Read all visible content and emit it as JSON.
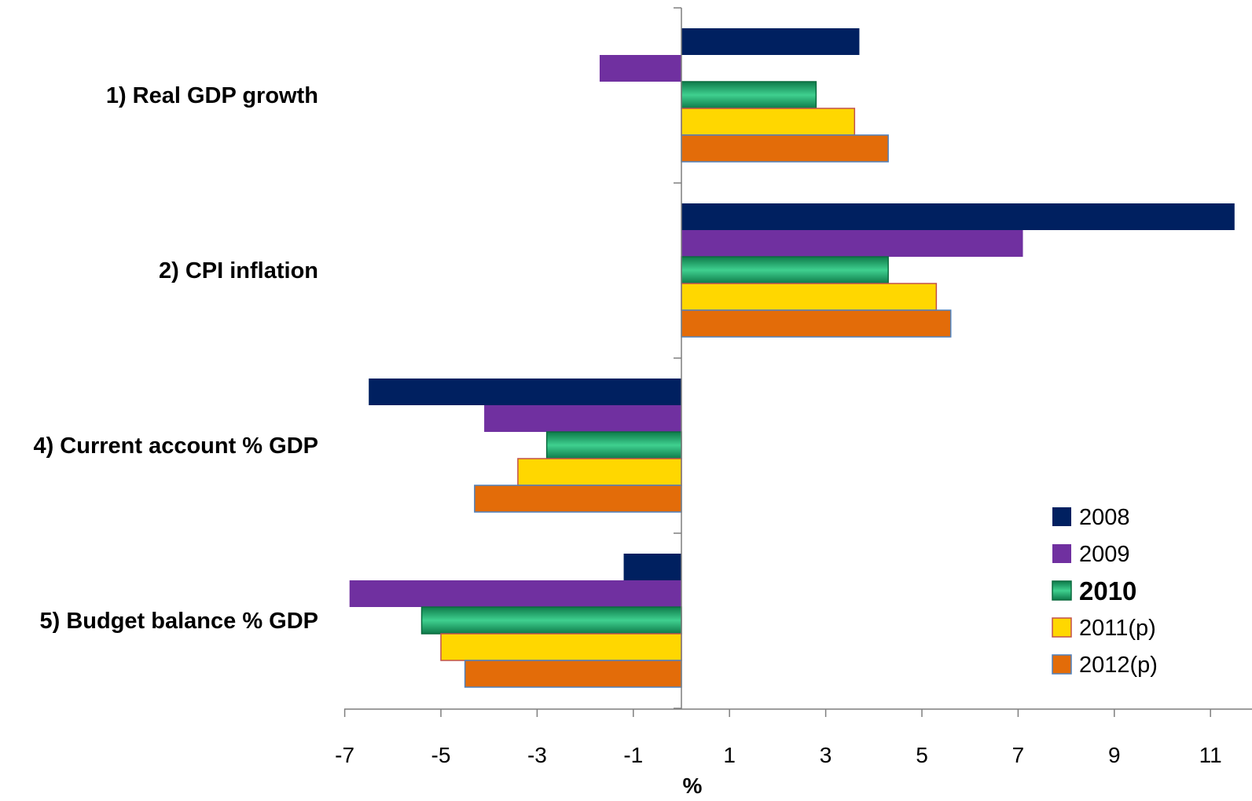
{
  "chart_data": {
    "type": "bar",
    "orientation": "horizontal",
    "categories": [
      "1) Real GDP growth",
      "2) CPI inflation",
      "4) Current account % GDP",
      "5) Budget balance % GDP"
    ],
    "series": [
      {
        "name": "2008",
        "values": [
          3.7,
          11.5,
          -6.5,
          -1.2
        ],
        "color": "#002060"
      },
      {
        "name": "2009",
        "values": [
          -1.7,
          7.1,
          -4.1,
          -6.9
        ],
        "color": "#7030a0"
      },
      {
        "name": "2010",
        "values": [
          2.8,
          4.3,
          -2.8,
          -5.4
        ],
        "color": "#1fa56a",
        "highlight_color": "#00b050"
      },
      {
        "name": "2011(p)",
        "values": [
          3.6,
          5.3,
          -3.4,
          -5.0
        ],
        "color": "#ffd700"
      },
      {
        "name": "2012(p)",
        "values": [
          4.3,
          5.6,
          -4.3,
          -4.5
        ],
        "color": "#e36c09"
      }
    ],
    "xlabel": "%",
    "xlim": [
      -7,
      11.5
    ],
    "x_ticks": [
      "-7",
      "-5",
      "-3",
      "-1",
      "1",
      "3",
      "5",
      "7",
      "9",
      "11"
    ],
    "x_tick_values": [
      -7,
      -5,
      -3,
      -1,
      1,
      3,
      5,
      7,
      9,
      11
    ],
    "grid": false,
    "legend_position": "bottom-right"
  }
}
